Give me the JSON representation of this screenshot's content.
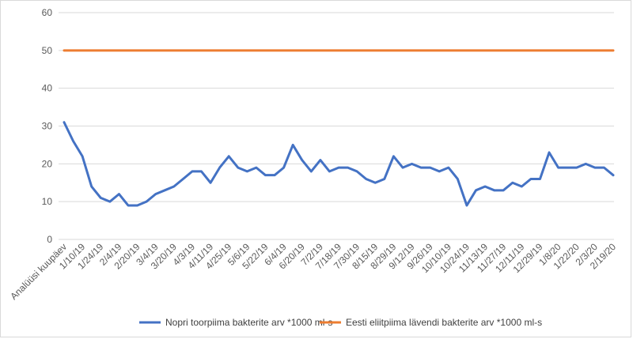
{
  "chart_data": {
    "type": "line",
    "title": "",
    "xlabel": "",
    "ylabel": "",
    "ylim": [
      0,
      60
    ],
    "yticks": [
      0,
      10,
      20,
      30,
      40,
      50,
      60
    ],
    "grid": true,
    "legend_position": "bottom",
    "x_tick_labels": [
      "Analüüsi kuupäev",
      "1/10/19",
      "1/24/19",
      "2/4/19",
      "2/20/19",
      "3/4/19",
      "3/20/19",
      "4/3/19",
      "4/11/19",
      "4/25/19",
      "5/6/19",
      "5/22/19",
      "6/4/19",
      "6/20/19",
      "7/2/19",
      "7/18/19",
      "7/30/19",
      "8/15/19",
      "8/29/19",
      "9/12/19",
      "9/26/19",
      "10/10/19",
      "10/24/19",
      "11/13/19",
      "11/27/19",
      "12/11/19",
      "12/29/19",
      "1/8/20",
      "1/22/20",
      "2/3/20",
      "2/19/20"
    ],
    "series": [
      {
        "name": "Nopri toorpiima bakterite arv *1000 ml-s",
        "color": "#4472c4",
        "values": [
          31,
          26,
          22,
          14,
          11,
          10,
          12,
          9,
          9,
          10,
          12,
          13,
          14,
          16,
          18,
          18,
          15,
          19,
          22,
          19,
          18,
          19,
          17,
          17,
          19,
          25,
          21,
          18,
          21,
          18,
          19,
          19,
          18,
          16,
          15,
          16,
          22,
          19,
          20,
          19,
          19,
          18,
          19,
          16,
          9,
          13,
          14,
          13,
          13,
          15,
          14,
          16,
          16,
          23,
          19,
          19,
          19,
          20,
          19,
          19,
          17
        ]
      },
      {
        "name": "Eesti eliitpiima lävendi bakterite arv *1000 ml-s",
        "color": "#ed7d31",
        "values": [
          50,
          50,
          50,
          50,
          50,
          50,
          50,
          50,
          50,
          50,
          50,
          50,
          50,
          50,
          50,
          50,
          50,
          50,
          50,
          50,
          50,
          50,
          50,
          50,
          50,
          50,
          50,
          50,
          50,
          50,
          50,
          50,
          50,
          50,
          50,
          50,
          50,
          50,
          50,
          50,
          50,
          50,
          50,
          50,
          50,
          50,
          50,
          50,
          50,
          50,
          50,
          50,
          50,
          50,
          50,
          50,
          50,
          50,
          50,
          50,
          50
        ]
      }
    ]
  }
}
